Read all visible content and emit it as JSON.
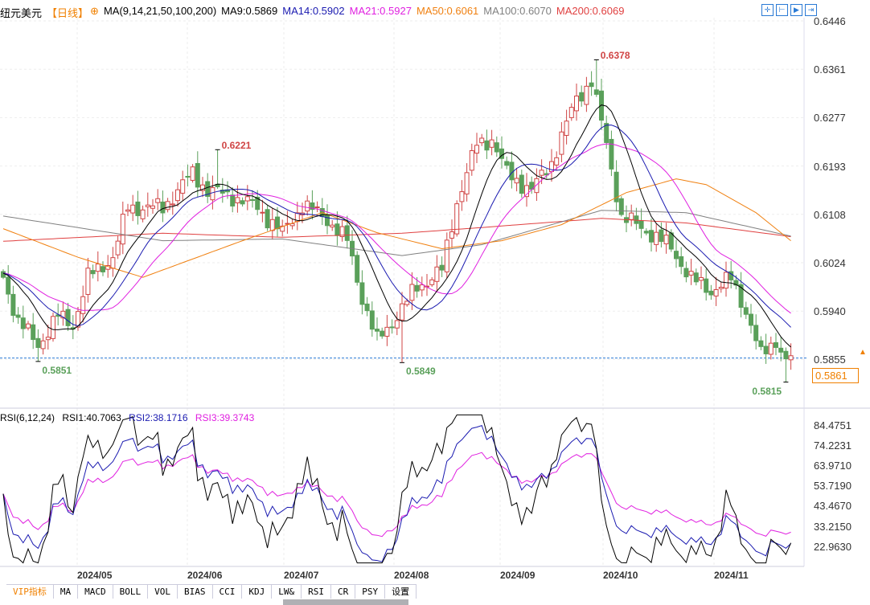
{
  "header": {
    "symbol": "纽元美元",
    "period": "【日线】",
    "indicator": "MA(9,14,21,50,100,200)",
    "ma": [
      {
        "label": "MA9:0.5869",
        "color": "#000000"
      },
      {
        "label": "MA14:0.5902",
        "color": "#1a1ab0"
      },
      {
        "label": "MA21:0.5927",
        "color": "#e020e0"
      },
      {
        "label": "MA50:0.6061",
        "color": "#f08010"
      },
      {
        "label": "MA100:0.6070",
        "color": "#808080"
      },
      {
        "label": "MA200:0.6069",
        "color": "#e04040"
      }
    ]
  },
  "toolbar": [
    "crosshair-icon",
    "zoom-range-icon",
    "play-icon",
    "exit-icon"
  ],
  "price_axis": [
    "0.6446",
    "0.6361",
    "0.6277",
    "0.6193",
    "0.6108",
    "0.6024",
    "0.5940",
    "0.5855"
  ],
  "current_price": "0.5861",
  "rsi": {
    "indicator": "RSI(6,12,24)",
    "labels": [
      {
        "label": "RSI1:40.7063",
        "color": "#000000"
      },
      {
        "label": "RSI2:38.1716",
        "color": "#1a1ab0"
      },
      {
        "label": "RSI3:39.3743",
        "color": "#e020e0"
      }
    ],
    "axis": [
      "84.4751",
      "74.2231",
      "63.9710",
      "53.7190",
      "43.4670",
      "33.2150",
      "22.9630"
    ]
  },
  "dates": [
    "2024/05",
    "2024/06",
    "2024/07",
    "2024/08",
    "2024/09",
    "2024/10",
    "2024/11"
  ],
  "tabs": [
    "VIP指标",
    "MA",
    "MACD",
    "BOLL",
    "VOL",
    "BIAS",
    "CCI",
    "KDJ",
    "LW&",
    "RSI",
    "CR",
    "PSY",
    "设置"
  ],
  "chart_data": {
    "type": "candlestick",
    "ylim": [
      0.579,
      0.647
    ],
    "annotations": [
      {
        "idx": 7,
        "value": "0.5851",
        "kind": "low"
      },
      {
        "idx": 43,
        "value": "0.6221",
        "kind": "high"
      },
      {
        "idx": 80,
        "value": "0.5849",
        "kind": "low"
      },
      {
        "idx": 119,
        "value": "0.6378",
        "kind": "high"
      },
      {
        "idx": 157,
        "value": "0.5815",
        "kind": "low"
      }
    ],
    "close_keypoints": [
      [
        0,
        0.5998
      ],
      [
        3,
        0.5921
      ],
      [
        7,
        0.588
      ],
      [
        11,
        0.593
      ],
      [
        14,
        0.5915
      ],
      [
        17,
        0.5998
      ],
      [
        22,
        0.6033
      ],
      [
        25,
        0.612
      ],
      [
        32,
        0.612
      ],
      [
        38,
        0.618
      ],
      [
        41,
        0.615
      ],
      [
        46,
        0.614
      ],
      [
        51,
        0.612
      ],
      [
        56,
        0.6075
      ],
      [
        60,
        0.6125
      ],
      [
        65,
        0.61
      ],
      [
        69,
        0.6061
      ],
      [
        72,
        0.5963
      ],
      [
        75,
        0.5886
      ],
      [
        78,
        0.592
      ],
      [
        83,
        0.5981
      ],
      [
        88,
        0.601
      ],
      [
        91,
        0.613
      ],
      [
        95,
        0.623
      ],
      [
        98,
        0.624
      ],
      [
        101,
        0.618
      ],
      [
        106,
        0.615
      ],
      [
        110,
        0.62
      ],
      [
        115,
        0.631
      ],
      [
        118,
        0.6342
      ],
      [
        121,
        0.623
      ],
      [
        124,
        0.6104
      ],
      [
        129,
        0.608
      ],
      [
        134,
        0.605
      ],
      [
        138,
        0.5995
      ],
      [
        142,
        0.5975
      ],
      [
        146,
        0.5995
      ],
      [
        149,
        0.594
      ],
      [
        152,
        0.586
      ],
      [
        155,
        0.589
      ],
      [
        157,
        0.585
      ],
      [
        158,
        0.5861
      ]
    ],
    "ma50": [
      [
        0,
        0.6083
      ],
      [
        15,
        0.6033
      ],
      [
        28,
        0.5998
      ],
      [
        48,
        0.6062
      ],
      [
        64,
        0.6111
      ],
      [
        75,
        0.6076
      ],
      [
        88,
        0.6048
      ],
      [
        100,
        0.6062
      ],
      [
        112,
        0.609
      ],
      [
        125,
        0.6146
      ],
      [
        135,
        0.617
      ],
      [
        141,
        0.616
      ],
      [
        151,
        0.6111
      ],
      [
        158,
        0.6062
      ]
    ],
    "ma100": [
      [
        0,
        0.6105
      ],
      [
        32,
        0.6062
      ],
      [
        56,
        0.6065
      ],
      [
        80,
        0.6036
      ],
      [
        96,
        0.6055
      ],
      [
        120,
        0.6115
      ],
      [
        137,
        0.6111
      ],
      [
        158,
        0.607
      ]
    ],
    "ma200": [
      [
        0,
        0.6061
      ],
      [
        32,
        0.6075
      ],
      [
        56,
        0.6068
      ],
      [
        80,
        0.6075
      ],
      [
        96,
        0.6085
      ],
      [
        120,
        0.6101
      ],
      [
        137,
        0.6093
      ],
      [
        158,
        0.6069
      ]
    ]
  }
}
